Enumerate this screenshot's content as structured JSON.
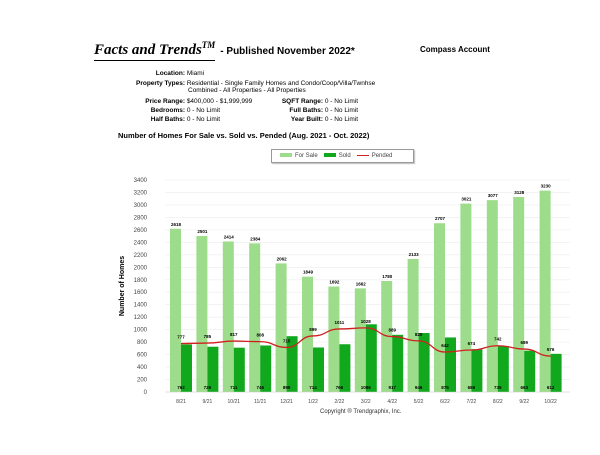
{
  "header": {
    "title": "Facts and Trends",
    "title_mark": "TM",
    "published": "- Published November 2022*",
    "account": "Compass Account"
  },
  "filters": {
    "location": {
      "label": "Location:",
      "value": "Miami"
    },
    "property_types": {
      "label": "Property Types:",
      "value1": "Residential - Single Family Homes and Condo/Coop/Villa/Twnhse",
      "value2": "Combined - All Properties - All Properties"
    },
    "price_range": {
      "label": "Price Range:",
      "value": "$400,000 - $1,999,999"
    },
    "sqft_range": {
      "label": "SQFT Range:",
      "value": "0 - No Limit"
    },
    "bedrooms": {
      "label": "Bedrooms:",
      "value": "0 - No Limit"
    },
    "full_baths": {
      "label": "Full Baths:",
      "value": "0 - No Limit"
    },
    "half_baths": {
      "label": "Half Baths:",
      "value": "0 - No Limit"
    },
    "year_built": {
      "label": "Year Built:",
      "value": "0 - No Limit"
    }
  },
  "copyright": "Copyright ® Trendgraphix, Inc.",
  "colors": {
    "for_sale": "#9ddc8a",
    "sold": "#12a81e",
    "pended": "#d02020"
  },
  "chart_data": {
    "type": "bar",
    "title": "Number of Homes For Sale vs. Sold vs. Pended (Aug. 2021 - Oct. 2022)",
    "ylabel": "Number of Homes",
    "xlabel": "",
    "ylim": [
      0,
      3400
    ],
    "yticks": [
      0,
      200,
      400,
      600,
      800,
      1000,
      1200,
      1400,
      1600,
      1800,
      2000,
      2200,
      2400,
      2600,
      2800,
      3000,
      3200,
      3400
    ],
    "grid": true,
    "legend": "top-center",
    "categories": [
      "8/21",
      "9/21",
      "10/21",
      "11/21",
      "12/21",
      "1/22",
      "2/22",
      "3/22",
      "4/22",
      "5/22",
      "6/22",
      "7/22",
      "8/22",
      "9/22",
      "10/22"
    ],
    "series": [
      {
        "name": "For Sale",
        "type": "bar",
        "values": [
          2618,
          2501,
          2414,
          2384,
          2062,
          1849,
          1692,
          1662,
          1780,
          2133,
          2707,
          3021,
          3077,
          3128,
          3230
        ]
      },
      {
        "name": "Sold",
        "type": "bar",
        "values": [
          762,
          726,
          711,
          746,
          895,
          714,
          766,
          1086,
          917,
          946,
          875,
          686,
          735,
          663,
          612
        ]
      },
      {
        "name": "Pended",
        "type": "line",
        "values": [
          777,
          785,
          817,
          808,
          715,
          899,
          1011,
          1028,
          889,
          820,
          642,
          674,
          742,
          689,
          576
        ]
      }
    ]
  }
}
